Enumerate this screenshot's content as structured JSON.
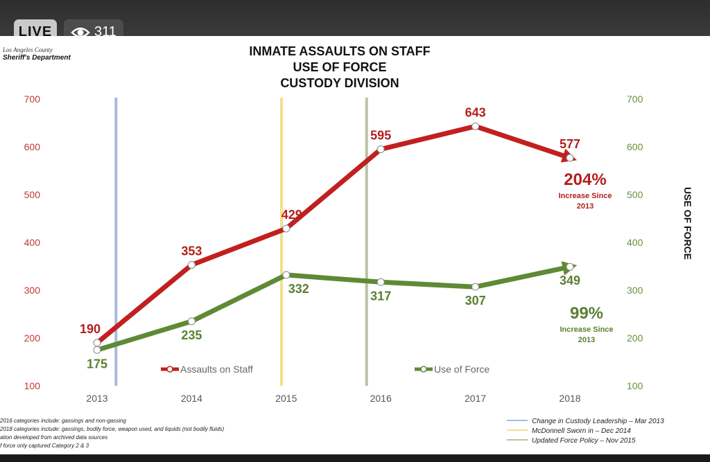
{
  "stream": {
    "live_label": "LIVE",
    "viewer_count": "311",
    "viewer_icon": "eye-icon"
  },
  "logo": {
    "line1": "Los Angeles County",
    "line2": "Sheriff's Department"
  },
  "title_lines": [
    "INMATE ASSAULTS ON STAFF",
    "USE OF FORCE",
    "CUSTODY DIVISION"
  ],
  "right_axis_label": "USE OF FORCE",
  "callouts": {
    "assaults": {
      "pct": "204%",
      "line1": "Increase Since",
      "line2": "2013"
    },
    "force": {
      "pct": "99%",
      "line1": "Increase Since",
      "line2": "2013"
    }
  },
  "legend": {
    "assaults": "Assaults on Staff",
    "force": "Use of Force"
  },
  "footnotes": [
    "2016 categories include: gassings and non-gassing",
    "2018 categories include: gassings, bodily force, weapon used, and liquids (not bodily fluids)",
    "ation developed from archived data sources",
    "f force only captured Category 2 & 3"
  ],
  "event_legend": [
    {
      "label": "Change in Custody Leadership – Mar 2013",
      "color": "#a9b9e0"
    },
    {
      "label": "McDonnell Sworn in – Dec 2014",
      "color": "#f3e08a"
    },
    {
      "label": "Updated Force Policy – Nov 2015",
      "color": "#b9c3a3"
    }
  ],
  "chart_data": {
    "type": "line",
    "categories": [
      "2013",
      "2014",
      "2015",
      "2016",
      "2017",
      "2018"
    ],
    "ylim": [
      100,
      700
    ],
    "yticks": [
      100,
      200,
      300,
      400,
      500,
      600,
      700
    ],
    "grid": false,
    "legend_position": "bottom",
    "series": [
      {
        "name": "Assaults on Staff",
        "values": [
          190,
          353,
          429,
          595,
          643,
          577
        ],
        "color": "#c0201f",
        "labels": [
          "190",
          "353",
          "429",
          "595",
          "643",
          "577"
        ]
      },
      {
        "name": "Use of Force",
        "values": [
          175,
          235,
          332,
          317,
          307,
          349
        ],
        "color": "#5e8a35",
        "labels": [
          "175",
          "235",
          "332",
          "317",
          "307",
          "349"
        ]
      }
    ],
    "event_lines": [
      {
        "x": 2013.2,
        "color": "#a9b9e0"
      },
      {
        "x": 2014.95,
        "color": "#f3e08a"
      },
      {
        "x": 2015.85,
        "color": "#b9c3a3"
      }
    ]
  }
}
